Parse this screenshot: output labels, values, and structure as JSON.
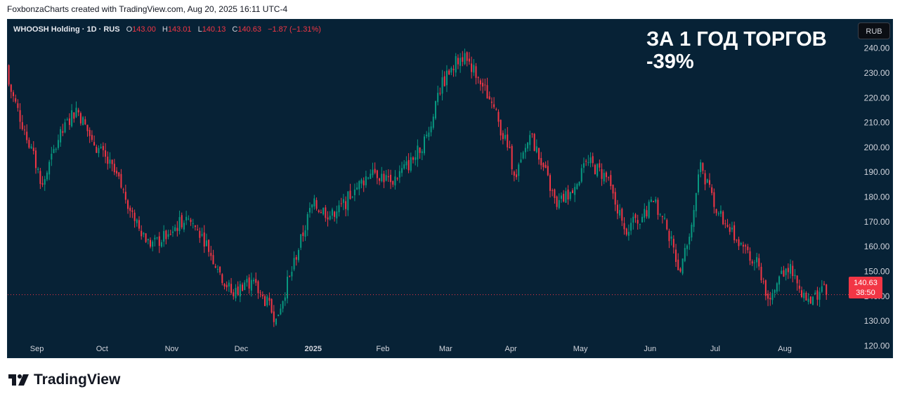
{
  "credit": "FoxbonzaCharts created with TradingView.com, Aug 20, 2025 16:11 UTC-4",
  "legend": {
    "symbol": "WHOOSH Holding · 1D · RUS",
    "open_label": "O",
    "open": "143.00",
    "high_label": "H",
    "high": "143.01",
    "low_label": "L",
    "low": "140.13",
    "close_label": "C",
    "close": "140.63",
    "change": "−1.87 (−1.31%)"
  },
  "currency": "RUB",
  "headline": {
    "line1": "ЗА 1 ГОД ТОРГОВ",
    "line2": "-39%"
  },
  "price_tag": {
    "price": "140.63",
    "countdown": "38:50"
  },
  "brand": {
    "name": "TradingView",
    "logo": "tradingview-logo"
  },
  "colors": {
    "background": "#072236",
    "up": "#089981",
    "down": "#f23645",
    "text": "#d1d4dc"
  },
  "chart_data": {
    "type": "candlestick",
    "y_ticks": [
      120,
      130,
      140,
      150,
      160,
      170,
      180,
      190,
      200,
      210,
      220,
      230,
      240
    ],
    "ylim": [
      115.6,
      251.5
    ],
    "x_tick_labels": [
      "Sep",
      "Oct",
      "Nov",
      "Dec",
      "2025",
      "Feb",
      "Mar",
      "Apr",
      "May",
      "Jun",
      "Jul",
      "Aug"
    ],
    "x_tick_dates": [
      "2024-09-02",
      "2024-10-01",
      "2024-11-01",
      "2024-12-02",
      "2025-01-03",
      "2025-02-03",
      "2025-03-03",
      "2025-04-01",
      "2025-05-02",
      "2025-06-02",
      "2025-07-01",
      "2025-08-01"
    ],
    "last_price": 140.63,
    "ohlc_points": [
      [
        "2024-08-20",
        233,
        228
      ],
      [
        "2024-08-28",
        220,
        207
      ],
      [
        "2024-09-05",
        196,
        185
      ],
      [
        "2024-09-12",
        192,
        203
      ],
      [
        "2024-09-20",
        208,
        216
      ],
      [
        "2024-09-27",
        212,
        203
      ],
      [
        "2024-10-07",
        202,
        190
      ],
      [
        "2024-10-15",
        188,
        174
      ],
      [
        "2024-10-23",
        172,
        160
      ],
      [
        "2024-10-31",
        160,
        165
      ],
      [
        "2024-11-08",
        166,
        172
      ],
      [
        "2024-11-15",
        170,
        165
      ],
      [
        "2024-11-22",
        163,
        151
      ],
      [
        "2024-11-29",
        150,
        140
      ],
      [
        "2024-12-05",
        140,
        147
      ],
      [
        "2024-12-12",
        146,
        140
      ],
      [
        "2024-12-18",
        138,
        131
      ],
      [
        "2024-12-24",
        131,
        148
      ],
      [
        "2025-01-03",
        150,
        177
      ],
      [
        "2025-01-13",
        176,
        172
      ],
      [
        "2025-01-22",
        173,
        183
      ],
      [
        "2025-01-30",
        185,
        191
      ],
      [
        "2025-02-07",
        192,
        186
      ],
      [
        "2025-02-17",
        188,
        195
      ],
      [
        "2025-02-24",
        196,
        206
      ],
      [
        "2025-02-28",
        208,
        222
      ],
      [
        "2025-03-06",
        222,
        232
      ],
      [
        "2025-03-12",
        233,
        238
      ],
      [
        "2025-03-18",
        236,
        228
      ],
      [
        "2025-03-24",
        230,
        218
      ],
      [
        "2025-03-31",
        215,
        200
      ],
      [
        "2025-04-04",
        198,
        188
      ],
      [
        "2025-04-10",
        190,
        205
      ],
      [
        "2025-04-16",
        203,
        192
      ],
      [
        "2025-04-22",
        188,
        176
      ],
      [
        "2025-04-28",
        176,
        182
      ],
      [
        "2025-05-06",
        183,
        194
      ],
      [
        "2025-05-14",
        192,
        188
      ],
      [
        "2025-05-22",
        186,
        167
      ],
      [
        "2025-05-30",
        166,
        172
      ],
      [
        "2025-06-04",
        173,
        178
      ],
      [
        "2025-06-10",
        176,
        167
      ],
      [
        "2025-06-16",
        165,
        150
      ],
      [
        "2025-06-20",
        152,
        164
      ],
      [
        "2025-06-25",
        166,
        194
      ],
      [
        "2025-07-01",
        180,
        176
      ],
      [
        "2025-07-07",
        175,
        168
      ],
      [
        "2025-07-14",
        167,
        160
      ],
      [
        "2025-07-21",
        162,
        152
      ],
      [
        "2025-07-25",
        150,
        139
      ],
      [
        "2025-07-30",
        141,
        148
      ],
      [
        "2025-08-04",
        149,
        153
      ],
      [
        "2025-08-08",
        152,
        143
      ],
      [
        "2025-08-13",
        142,
        137
      ],
      [
        "2025-08-18",
        139,
        144
      ],
      [
        "2025-08-20",
        143,
        140.63
      ]
    ]
  }
}
